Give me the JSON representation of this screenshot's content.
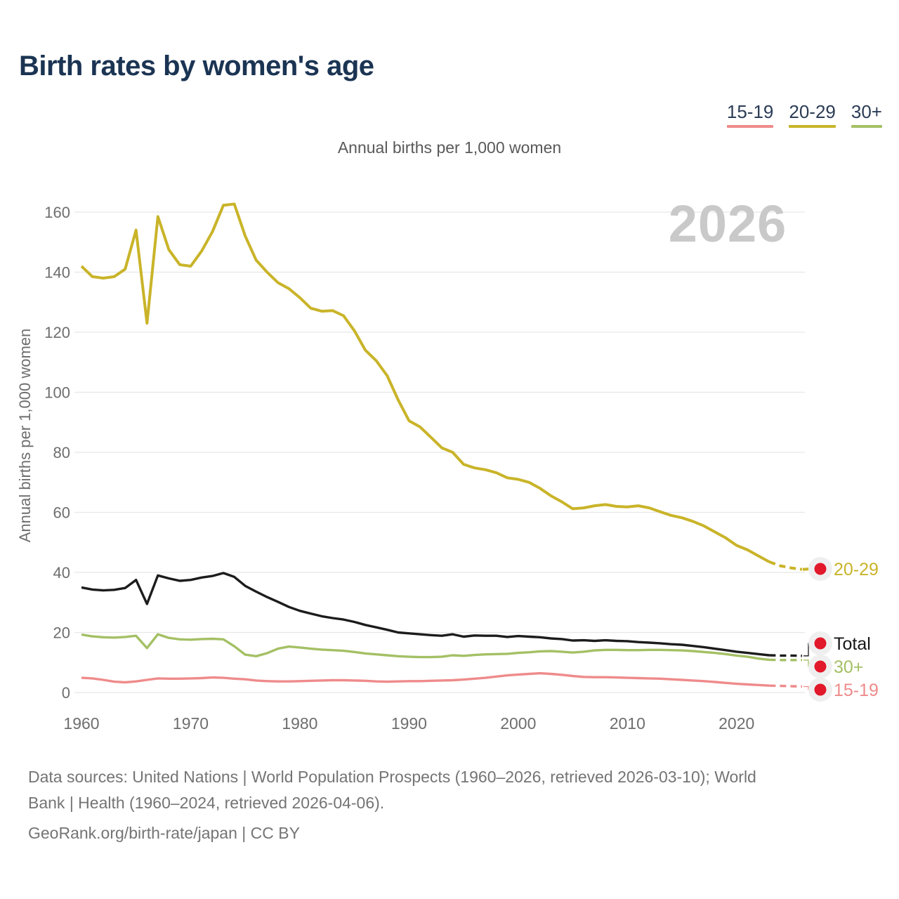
{
  "header": {
    "title": "Birth rates by women's age"
  },
  "subtitle": "Annual births per 1,000 women",
  "watermark": "2026",
  "legend": {
    "items": [
      {
        "label": "15-19",
        "color": "#ef8b8b"
      },
      {
        "label": "20-29",
        "color": "#c9b429"
      },
      {
        "label": "30+",
        "color": "#a4c065"
      }
    ]
  },
  "footer": {
    "line1": "Data sources: United Nations | World Population Prospects (1960–2026, retrieved 2026-03-10); World",
    "line2": "Bank | Health (1960–2024, retrieved 2026-04-06).",
    "line3": "GeoRank.org/birth-rate/japan | CC BY"
  },
  "chart_data": {
    "type": "line",
    "title": "Birth rates by women's age",
    "unit_label": "Annual births per 1,000 women",
    "xlabel": "",
    "ylabel": "Annual births per 1,000 women",
    "xlim": [
      1960,
      2026
    ],
    "ylim": [
      0,
      160
    ],
    "xticks": [
      1960,
      1970,
      1980,
      1990,
      2000,
      2010,
      2020
    ],
    "yticks": [
      0,
      20,
      40,
      60,
      80,
      100,
      120,
      140,
      160
    ],
    "grid": "horizontal",
    "legend_position": "top-right",
    "projection_from": 2023,
    "end_marker_color": "#e2182b",
    "end_marker_halo_color": "#efefef",
    "years": [
      1960,
      1961,
      1962,
      1963,
      1964,
      1965,
      1966,
      1967,
      1968,
      1969,
      1970,
      1971,
      1972,
      1973,
      1974,
      1975,
      1976,
      1977,
      1978,
      1979,
      1980,
      1981,
      1982,
      1983,
      1984,
      1985,
      1986,
      1987,
      1988,
      1989,
      1990,
      1991,
      1992,
      1993,
      1994,
      1995,
      1996,
      1997,
      1998,
      1999,
      2000,
      2001,
      2002,
      2003,
      2004,
      2005,
      2006,
      2007,
      2008,
      2009,
      2010,
      2011,
      2012,
      2013,
      2014,
      2015,
      2016,
      2017,
      2018,
      2019,
      2020,
      2021,
      2022,
      2023,
      2024,
      2025,
      2026
    ],
    "series": [
      {
        "name": "20-29",
        "end_label": "20-29",
        "color": "#c9b429",
        "values": [
          142,
          138.5,
          138,
          138.5,
          141,
          154,
          123,
          158.5,
          147.5,
          142.5,
          142,
          147,
          153.5,
          162.3,
          162.7,
          152,
          144,
          140,
          136.5,
          134.5,
          131.5,
          128,
          127,
          127.2,
          125.5,
          120.5,
          114,
          110.5,
          105.5,
          97.5,
          90.5,
          88.5,
          85,
          81.5,
          80,
          76,
          74.8,
          74.2,
          73.2,
          71.5,
          71,
          70,
          68,
          65.5,
          63.5,
          61.2,
          61.5,
          62.2,
          62.6,
          62,
          61.8,
          62.2,
          61.5,
          60.2,
          59,
          58.2,
          57,
          55.5,
          53.5,
          51.5,
          49,
          47.5,
          45.5,
          43.5,
          42.2,
          41.5,
          41
        ]
      },
      {
        "name": "Total",
        "end_label": "Total",
        "color": "#1c1c1c",
        "values": [
          35,
          34.3,
          34,
          34.2,
          34.8,
          37.5,
          29.5,
          39,
          38,
          37.2,
          37.5,
          38.3,
          38.8,
          39.8,
          38.5,
          35.5,
          33.6,
          31.8,
          30.2,
          28.5,
          27.2,
          26.3,
          25.4,
          24.8,
          24.3,
          23.5,
          22.5,
          21.7,
          20.9,
          20,
          19.7,
          19.4,
          19.1,
          18.9,
          19.4,
          18.6,
          19,
          18.9,
          18.9,
          18.5,
          18.8,
          18.6,
          18.4,
          18,
          17.8,
          17.3,
          17.4,
          17.2,
          17.4,
          17.2,
          17.1,
          16.8,
          16.6,
          16.4,
          16.1,
          15.9,
          15.5,
          15.1,
          14.6,
          14.1,
          13.6,
          13.2,
          12.8,
          12.4,
          12.3,
          12.3,
          12.2
        ]
      },
      {
        "name": "30+",
        "end_label": "30+",
        "color": "#a4c065",
        "values": [
          19.3,
          18.7,
          18.4,
          18.3,
          18.5,
          18.9,
          14.8,
          19.4,
          18.2,
          17.7,
          17.6,
          17.8,
          17.9,
          17.7,
          15.4,
          12.6,
          12.1,
          13.1,
          14.6,
          15.3,
          15,
          14.6,
          14.3,
          14.1,
          13.9,
          13.5,
          13,
          12.7,
          12.4,
          12.1,
          11.9,
          11.8,
          11.8,
          11.9,
          12.4,
          12.2,
          12.5,
          12.7,
          12.8,
          12.9,
          13.2,
          13.4,
          13.7,
          13.8,
          13.6,
          13.3,
          13.6,
          14,
          14.2,
          14.2,
          14.1,
          14.1,
          14.2,
          14.2,
          14.1,
          14,
          13.8,
          13.5,
          13.2,
          12.8,
          12.3,
          11.9,
          11.3,
          10.9,
          10.8,
          10.8,
          10.8
        ]
      },
      {
        "name": "15-19",
        "end_label": "15-19",
        "color": "#ef8b8b",
        "values": [
          4.9,
          4.7,
          4.2,
          3.6,
          3.4,
          3.7,
          4.2,
          4.7,
          4.6,
          4.6,
          4.7,
          4.8,
          5,
          4.9,
          4.6,
          4.4,
          4,
          3.8,
          3.7,
          3.7,
          3.8,
          3.9,
          4,
          4.1,
          4.1,
          4,
          3.9,
          3.7,
          3.6,
          3.7,
          3.8,
          3.8,
          3.9,
          4,
          4.1,
          4.3,
          4.6,
          4.9,
          5.3,
          5.7,
          6,
          6.2,
          6.4,
          6.2,
          5.9,
          5.5,
          5.2,
          5.1,
          5.1,
          5,
          4.9,
          4.8,
          4.7,
          4.6,
          4.4,
          4.2,
          4,
          3.8,
          3.5,
          3.2,
          2.9,
          2.7,
          2.5,
          2.3,
          2.2,
          2.1,
          2
        ]
      }
    ]
  }
}
